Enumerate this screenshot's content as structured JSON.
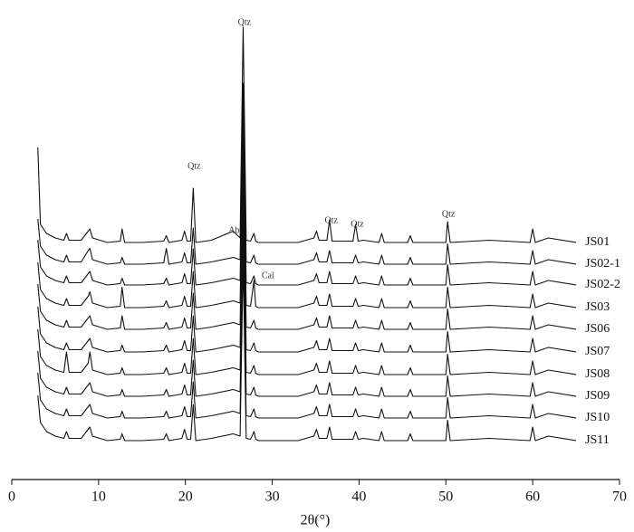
{
  "chart_data": {
    "type": "line",
    "x_label": "2θ(°)",
    "xlim": [
      0,
      70
    ],
    "xticks": [
      0,
      10,
      20,
      30,
      40,
      50,
      60,
      70
    ],
    "ylim": [
      0,
      102
    ],
    "x": [
      3,
      3.3,
      4,
      5,
      6,
      6.3,
      6.6,
      8,
      8.8,
      9,
      9.3,
      11,
      12.5,
      12.7,
      13,
      15,
      17.5,
      17.8,
      18.1,
      19.6,
      19.9,
      20.2,
      20.6,
      20.9,
      21.2,
      23,
      25.5,
      26.3,
      26.65,
      27.0,
      27.5,
      27.9,
      28.1,
      28.4,
      30,
      33,
      34.8,
      35.1,
      35.4,
      36.3,
      36.6,
      36.9,
      38,
      39.3,
      39.6,
      39.9,
      40.5,
      42.3,
      42.6,
      42.9,
      45.6,
      45.9,
      46.2,
      50,
      50.2,
      50.5,
      55,
      59.7,
      60.0,
      60.3,
      61.8,
      65
    ],
    "series": [
      {
        "name": "JS01",
        "color": "#111111",
        "values": [
          73.4,
          56.4,
          54.4,
          53.4,
          52.9,
          54.4,
          52.9,
          52.9,
          54.9,
          55.4,
          53.4,
          52.4,
          52.7,
          55.4,
          52.4,
          52.4,
          52.7,
          53.9,
          52.4,
          52.9,
          54.9,
          52.7,
          52.7,
          64.4,
          52.4,
          52.9,
          54.9,
          53.4,
          100,
          52.9,
          52.7,
          54.4,
          52.7,
          52.4,
          52.4,
          52.4,
          53.4,
          54.9,
          52.9,
          52.9,
          57.4,
          52.7,
          52.7,
          52.7,
          56.4,
          52.7,
          52.9,
          52.4,
          54.4,
          52.4,
          52.4,
          53.9,
          52.4,
          52.4,
          57,
          52.4,
          52.9,
          52.4,
          55.4,
          52.4,
          53.4,
          52.4
        ]
      },
      {
        "name": "JS02-1",
        "color": "#111111",
        "values": [
          57.6,
          51.6,
          49.6,
          48.6,
          48.1,
          49.6,
          48.1,
          48.1,
          50.6,
          51.1,
          48.6,
          47.6,
          47.9,
          49.1,
          47.6,
          47.6,
          47.9,
          51.1,
          47.6,
          48.1,
          50.1,
          47.9,
          47.9,
          55.6,
          47.6,
          48.1,
          49.1,
          48.6,
          87.6,
          48.1,
          47.9,
          49.6,
          47.9,
          47.6,
          47.6,
          47.6,
          48.6,
          50.1,
          48.1,
          48.1,
          50.6,
          47.9,
          47.9,
          47.9,
          49.6,
          47.9,
          48.1,
          47.6,
          49.6,
          47.6,
          47.6,
          49.1,
          47.6,
          47.6,
          52.1,
          47.6,
          48.1,
          47.6,
          50.6,
          47.6,
          48.6,
          47.6
        ]
      },
      {
        "name": "JS02-2",
        "color": "#111111",
        "values": [
          53,
          47,
          45,
          44,
          43.5,
          45,
          43.5,
          43.5,
          45.5,
          46,
          44,
          43,
          43.3,
          44.5,
          43,
          43,
          43.3,
          44.5,
          43,
          43.5,
          45.5,
          43.3,
          43.3,
          51,
          43,
          43.5,
          44.5,
          44,
          83,
          43.5,
          43.3,
          45,
          43.3,
          43,
          43,
          43,
          44,
          45.5,
          43.5,
          43.5,
          46,
          43.3,
          43.3,
          43.3,
          45,
          43.3,
          43.5,
          43,
          45,
          43,
          43,
          44.5,
          43,
          43,
          47.5,
          43,
          43.5,
          43,
          46,
          43,
          44,
          43
        ]
      },
      {
        "name": "JS03",
        "color": "#111111",
        "values": [
          48,
          42,
          40,
          39,
          38.5,
          40,
          38.5,
          38.5,
          40.5,
          41.5,
          39,
          38,
          38.3,
          42.5,
          38,
          38,
          38.3,
          39.5,
          38,
          38.5,
          40.5,
          38.3,
          38.3,
          46,
          38,
          38.5,
          39.5,
          39,
          78,
          38.5,
          38.3,
          44,
          38.3,
          38,
          38,
          38,
          39,
          40.5,
          38.5,
          38.5,
          41,
          38.3,
          38.3,
          38.3,
          40,
          38.3,
          38.5,
          38,
          40,
          38,
          38,
          39.5,
          38,
          38,
          42.5,
          38,
          38.5,
          38,
          41,
          38,
          39,
          38
        ]
      },
      {
        "name": "JS06",
        "color": "#111111",
        "values": [
          43.2,
          37.2,
          35.2,
          34.2,
          33.7,
          35.2,
          33.7,
          33.7,
          35.7,
          36.2,
          34.2,
          33.2,
          33.5,
          36.2,
          33.2,
          33.2,
          33.5,
          34.7,
          33.2,
          33.7,
          35.7,
          33.5,
          33.5,
          41.2,
          33.2,
          33.7,
          34.7,
          34.2,
          73.2,
          33.7,
          33.5,
          35.2,
          33.5,
          33.2,
          33.2,
          33.2,
          34.2,
          35.7,
          33.7,
          33.7,
          36.2,
          33.5,
          33.5,
          33.5,
          35.2,
          33.5,
          33.7,
          33.2,
          35.2,
          33.2,
          33.2,
          34.7,
          33.2,
          33.2,
          37.7,
          33.2,
          33.7,
          33.2,
          36.2,
          33.2,
          34.2,
          33.2
        ]
      },
      {
        "name": "JS07",
        "color": "#111111",
        "values": [
          38.2,
          32.2,
          30.2,
          29.2,
          28.7,
          30.2,
          28.7,
          28.7,
          30.7,
          31.2,
          29.2,
          28.2,
          28.5,
          29.7,
          28.2,
          28.2,
          28.5,
          29.7,
          28.2,
          28.7,
          30.7,
          28.5,
          28.5,
          36.2,
          28.2,
          28.7,
          29.7,
          29.2,
          68.2,
          28.7,
          28.5,
          30.2,
          28.5,
          28.2,
          28.2,
          28.2,
          29.2,
          30.7,
          28.7,
          28.7,
          31.2,
          28.5,
          28.5,
          28.5,
          30.2,
          28.5,
          28.7,
          28.2,
          30.2,
          28.2,
          28.2,
          29.7,
          28.2,
          28.2,
          32.7,
          28.2,
          28.7,
          28.2,
          31.2,
          28.2,
          29.2,
          28.2
        ]
      },
      {
        "name": "JS08",
        "color": "#111111",
        "values": [
          33.2,
          27.2,
          25.2,
          24.2,
          23.7,
          28.2,
          23.7,
          23.7,
          25.7,
          28.2,
          24.2,
          23.2,
          23.5,
          24.7,
          23.2,
          23.2,
          23.5,
          24.7,
          23.2,
          23.7,
          25.7,
          23.5,
          23.5,
          31.2,
          23.2,
          23.7,
          24.7,
          24.2,
          63.2,
          23.7,
          23.5,
          25.2,
          23.5,
          23.2,
          23.2,
          23.2,
          24.2,
          25.7,
          23.7,
          23.7,
          26.2,
          23.5,
          23.5,
          23.5,
          25.2,
          23.5,
          23.7,
          23.2,
          25.2,
          23.2,
          23.2,
          24.7,
          23.2,
          23.2,
          27.7,
          23.2,
          23.7,
          23.2,
          26.2,
          23.2,
          24.2,
          23.2
        ]
      },
      {
        "name": "JS09",
        "color": "#111111",
        "values": [
          28.4,
          22.4,
          20.4,
          19.4,
          18.9,
          20.4,
          18.9,
          18.9,
          20.9,
          21.4,
          19.4,
          18.4,
          18.7,
          19.9,
          18.4,
          18.4,
          18.7,
          19.9,
          18.4,
          18.9,
          20.9,
          18.7,
          18.7,
          26.4,
          18.4,
          18.9,
          19.9,
          19.4,
          58.4,
          18.9,
          18.7,
          20.4,
          18.7,
          18.4,
          18.4,
          18.4,
          19.4,
          20.9,
          18.9,
          18.9,
          21.4,
          18.7,
          18.7,
          18.7,
          20.4,
          18.7,
          18.9,
          18.4,
          20.4,
          18.4,
          18.4,
          19.9,
          18.4,
          18.4,
          22.9,
          18.4,
          18.9,
          18.4,
          21.4,
          18.4,
          19.4,
          18.4
        ]
      },
      {
        "name": "JS10",
        "color": "#111111",
        "values": [
          23.6,
          17.6,
          15.6,
          14.6,
          14.1,
          15.6,
          14.1,
          14.1,
          16.1,
          16.6,
          14.6,
          13.6,
          13.9,
          15.1,
          13.6,
          13.6,
          13.9,
          15.1,
          13.6,
          14.1,
          16.1,
          13.9,
          13.9,
          21.6,
          13.6,
          14.1,
          15.1,
          14.6,
          53.6,
          14.1,
          13.9,
          15.6,
          13.9,
          13.6,
          13.6,
          13.6,
          14.6,
          16.1,
          14.1,
          14.1,
          16.6,
          13.9,
          13.9,
          13.9,
          15.6,
          13.9,
          14.1,
          13.6,
          15.6,
          13.6,
          13.6,
          15.1,
          13.6,
          13.6,
          18.1,
          13.6,
          14.1,
          13.6,
          16.6,
          13.6,
          14.6,
          13.6
        ]
      },
      {
        "name": "JS11",
        "color": "#111111",
        "values": [
          18.6,
          12.6,
          10.6,
          9.6,
          9.1,
          10.6,
          9.1,
          9.1,
          11.1,
          11.6,
          9.6,
          8.6,
          8.9,
          10.1,
          8.6,
          8.6,
          8.9,
          10.1,
          8.6,
          9.1,
          11.1,
          8.9,
          8.9,
          16.6,
          8.6,
          9.1,
          10.1,
          9.6,
          48.6,
          9.1,
          8.9,
          10.6,
          8.9,
          8.6,
          8.6,
          8.6,
          9.6,
          11.1,
          9.1,
          9.1,
          11.6,
          8.9,
          8.9,
          8.9,
          10.6,
          8.9,
          9.1,
          8.6,
          10.6,
          8.6,
          8.6,
          10.1,
          8.6,
          8.6,
          13.1,
          8.6,
          9.1,
          8.6,
          11.6,
          8.6,
          9.6,
          8.6
        ]
      }
    ],
    "annotations": [
      {
        "text": "Qtz",
        "x": 26.8,
        "y": 101
      },
      {
        "text": "Qtz",
        "x": 21,
        "y": 69.2
      },
      {
        "text": "Ab",
        "x": 25.6,
        "y": 55
      },
      {
        "text": "Qtz",
        "x": 36.8,
        "y": 57.2
      },
      {
        "text": "Qtz",
        "x": 39.8,
        "y": 56.4
      },
      {
        "text": "Qtz",
        "x": 50.3,
        "y": 58.6
      },
      {
        "text": "Cal",
        "x": 29.5,
        "y": 45
      }
    ]
  }
}
